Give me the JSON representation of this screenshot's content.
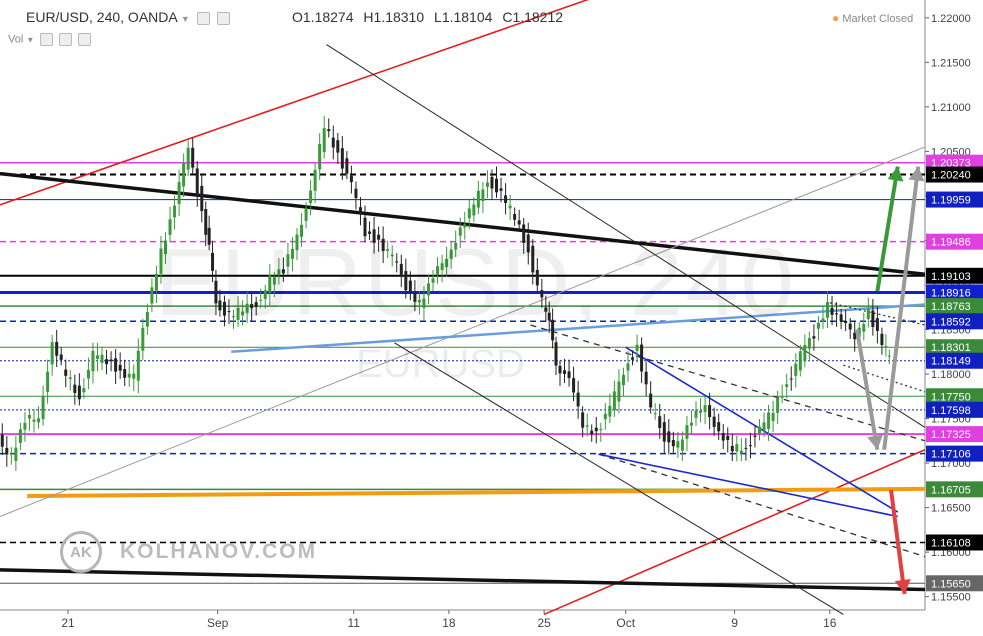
{
  "header": {
    "symbol": "EUR/USD, 240, OANDA",
    "ohlc": [
      {
        "label": "O",
        "value": "1.18274"
      },
      {
        "label": "H",
        "value": "1.18310"
      },
      {
        "label": "L",
        "value": "1.18104"
      },
      {
        "label": "C",
        "value": "1.18212"
      }
    ],
    "volume_label": "Vol",
    "market_status": "Market Closed"
  },
  "watermark": {
    "big": "EURUSD, 240",
    "small": "EURUSD"
  },
  "brand": {
    "logo": "AK",
    "name": "KOLHANOV.COM"
  },
  "chart_data": {
    "type": "candlestick",
    "ylim": [
      1.1535,
      1.222
    ],
    "x_ticks": [
      {
        "label": "21",
        "day": 21
      },
      {
        "label": "Sep",
        "day": 32
      },
      {
        "label": "11",
        "day": 42
      },
      {
        "label": "18",
        "day": 49
      },
      {
        "label": "25",
        "day": 56
      },
      {
        "label": "Oct",
        "day": 62
      },
      {
        "label": "9",
        "day": 70
      },
      {
        "label": "16",
        "day": 77
      }
    ],
    "y_ticks": [
      "1.22000",
      "1.21500",
      "1.21000",
      "1.20500",
      "1.20000",
      "1.19500",
      "1.19000",
      "1.18500",
      "1.18000",
      "1.17500",
      "1.17000",
      "1.16500",
      "1.16000",
      "1.15500"
    ],
    "levels": [
      {
        "label": "1.20373",
        "value": 1.20373,
        "color": "#e040e0",
        "bg": "#e040e0",
        "fg": "#ffffff",
        "style": "solid",
        "width": 1.5
      },
      {
        "label": "1.20240",
        "value": 1.2024,
        "color": "#000000",
        "bg": "#000000",
        "fg": "#ffffff",
        "style": "dashed",
        "width": 2
      },
      {
        "label": "1.19959",
        "value": 1.19959,
        "color": "#1020c0",
        "bg": "#1020c0",
        "fg": "#ffffff",
        "style": "solid",
        "width": 1
      },
      {
        "label": "1.19486",
        "value": 1.19486,
        "color": "#e040e0",
        "bg": "#e040e0",
        "fg": "#ffffff",
        "style": "dashed",
        "width": 1.5
      },
      {
        "label": "1.19103",
        "value": 1.19103,
        "color": "#000000",
        "bg": "#000000",
        "fg": "#ffffff",
        "style": "solid",
        "width": 2
      },
      {
        "label": "1.18916",
        "value": 1.18916,
        "color": "#1020d0",
        "bg": "#1020d0",
        "fg": "#ffffff",
        "style": "solid",
        "width": 3
      },
      {
        "label": "1.18763",
        "value": 1.18763,
        "color": "#3a8a3a",
        "bg": "#3a8a3a",
        "fg": "#ffffff",
        "style": "solid",
        "width": 1.5
      },
      {
        "label": "1.18592",
        "value": 1.18592,
        "color": "#1020c0",
        "bg": "#1020c0",
        "fg": "#ffffff",
        "style": "dashed",
        "width": 1.5
      },
      {
        "label": "1.18301",
        "value": 1.18301,
        "color": "#3a8a3a",
        "bg": "#3a8a3a",
        "fg": "#ffffff",
        "style": "solid",
        "width": 1
      },
      {
        "label": "1.18149",
        "value": 1.18149,
        "color": "#1020c0",
        "bg": "#1020c0",
        "fg": "#ffffff",
        "style": "dotted",
        "width": 1
      },
      {
        "label": "1.17750",
        "value": 1.1775,
        "color": "#3a8a3a",
        "bg": "#3a8a3a",
        "fg": "#ffffff",
        "style": "solid",
        "width": 1
      },
      {
        "label": "1.17598",
        "value": 1.17598,
        "color": "#1020c0",
        "bg": "#1020c0",
        "fg": "#ffffff",
        "style": "dotted",
        "width": 1
      },
      {
        "label": "1.17325",
        "value": 1.17325,
        "color": "#e040e0",
        "bg": "#e040e0",
        "fg": "#ffffff",
        "style": "solid",
        "width": 2
      },
      {
        "label": "1.17106",
        "value": 1.17106,
        "color": "#1020c0",
        "bg": "#1020c0",
        "fg": "#ffffff",
        "style": "dashed",
        "width": 1.5
      },
      {
        "label": "1.16705",
        "value": 1.16705,
        "color": "#3a8a3a",
        "bg": "#3a8a3a",
        "fg": "#ffffff",
        "style": "solid",
        "width": 1.5
      },
      {
        "label": "1.16108",
        "value": 1.16108,
        "color": "#000000",
        "bg": "#000000",
        "fg": "#ffffff",
        "style": "dashed",
        "width": 1.5
      },
      {
        "label": "1.15650",
        "value": 1.1565,
        "color": "#555555",
        "bg": "#666666",
        "fg": "#ffffff",
        "style": "solid",
        "width": 1
      }
    ],
    "last_price": 1.18212,
    "price_path": [
      [
        16,
        1.173
      ],
      [
        17,
        1.1706
      ],
      [
        18,
        1.1745
      ],
      [
        19,
        1.1755
      ],
      [
        20,
        1.183
      ],
      [
        21,
        1.18
      ],
      [
        22,
        1.1775
      ],
      [
        23,
        1.182
      ],
      [
        24,
        1.1815
      ],
      [
        25,
        1.1805
      ],
      [
        26,
        1.1795
      ],
      [
        27,
        1.1875
      ],
      [
        28,
        1.194
      ],
      [
        29,
        1.1985
      ],
      [
        30,
        1.206
      ],
      [
        31,
        1.198
      ],
      [
        31.5,
        1.194
      ],
      [
        32,
        1.188
      ],
      [
        33,
        1.1865
      ],
      [
        34,
        1.187
      ],
      [
        35,
        1.188
      ],
      [
        36,
        1.1905
      ],
      [
        37,
        1.1915
      ],
      [
        38,
        1.196
      ],
      [
        39,
        1.2
      ],
      [
        40,
        1.208
      ],
      [
        41,
        1.205
      ],
      [
        42,
        1.201
      ],
      [
        43,
        1.196
      ],
      [
        44,
        1.195
      ],
      [
        45,
        1.193
      ],
      [
        46,
        1.19
      ],
      [
        47,
        1.188
      ],
      [
        48,
        1.1905
      ],
      [
        49,
        1.1935
      ],
      [
        50,
        1.196
      ],
      [
        51,
        1.199
      ],
      [
        52,
        1.202
      ],
      [
        53,
        1.2
      ],
      [
        54,
        1.1975
      ],
      [
        55,
        1.194
      ],
      [
        56,
        1.188
      ],
      [
        56.5,
        1.1855
      ],
      [
        57,
        1.1815
      ],
      [
        58,
        1.179
      ],
      [
        59,
        1.1745
      ],
      [
        60,
        1.1735
      ],
      [
        61,
        1.176
      ],
      [
        62,
        1.1805
      ],
      [
        63,
        1.183
      ],
      [
        64,
        1.176
      ],
      [
        65,
        1.173
      ],
      [
        66,
        1.172
      ],
      [
        67,
        1.1745
      ],
      [
        68,
        1.177
      ],
      [
        69,
        1.173
      ],
      [
        70,
        1.1715
      ],
      [
        71,
        1.172
      ],
      [
        72,
        1.1735
      ],
      [
        73,
        1.176
      ],
      [
        74,
        1.179
      ],
      [
        75,
        1.182
      ],
      [
        76,
        1.1845
      ],
      [
        77,
        1.188
      ],
      [
        78,
        1.1855
      ],
      [
        79,
        1.1845
      ],
      [
        80,
        1.187
      ],
      [
        81,
        1.183
      ],
      [
        81.5,
        1.1821
      ]
    ],
    "trendlines": [
      {
        "id": "red-channel-top",
        "color": "#e02020",
        "width": 1.6,
        "dash": "",
        "p1": [
          16,
          1.199
        ],
        "p2": [
          61,
          1.223
        ]
      },
      {
        "id": "red-channel-bottom",
        "color": "#e02020",
        "width": 1.6,
        "dash": "",
        "p1": [
          56,
          1.153
        ],
        "p2": [
          84,
          1.1715
        ]
      },
      {
        "id": "black-thick-resistance",
        "color": "#111111",
        "width": 3.5,
        "dash": "",
        "p1": [
          16,
          1.2025
        ],
        "p2": [
          84,
          1.1912
        ]
      },
      {
        "id": "black-thick-bottom",
        "color": "#111111",
        "width": 3.5,
        "dash": "",
        "p1": [
          16,
          1.158
        ],
        "p2": [
          84,
          1.1558
        ]
      },
      {
        "id": "orange-support",
        "color": "#f39c12",
        "width": 4,
        "dash": "",
        "p1": [
          18,
          1.1663
        ],
        "p2": [
          84,
          1.1671
        ]
      },
      {
        "id": "light-blue-support",
        "color": "#6a9de0",
        "width": 2.5,
        "dash": "",
        "p1": [
          33,
          1.1825
        ],
        "p2": [
          84,
          1.1878
        ]
      },
      {
        "id": "grey-channel-line",
        "color": "#999999",
        "width": 1,
        "dash": "",
        "p1": [
          16,
          1.164
        ],
        "p2": [
          84,
          1.2055
        ]
      },
      {
        "id": "black-thin-upper",
        "color": "#222222",
        "width": 1,
        "dash": "",
        "p1": [
          40,
          1.217
        ],
        "p2": [
          84,
          1.174
        ]
      },
      {
        "id": "black-thin-lower",
        "color": "#222222",
        "width": 1,
        "dash": "",
        "p1": [
          45,
          1.1835
        ],
        "p2": [
          78,
          1.153
        ]
      },
      {
        "id": "black-dashed-mid1",
        "color": "#333333",
        "width": 1.3,
        "dash": "6,5",
        "p1": [
          55,
          1.1855
        ],
        "p2": [
          84,
          1.1725
        ]
      },
      {
        "id": "black-dashed-mid2",
        "color": "#333333",
        "width": 1.3,
        "dash": "6,5",
        "p1": [
          60,
          1.171
        ],
        "p2": [
          84,
          1.1595
        ]
      },
      {
        "id": "dotted-upper",
        "color": "#333333",
        "width": 1.3,
        "dash": "2,3",
        "p1": [
          77,
          1.188
        ],
        "p2": [
          84,
          1.1855
        ]
      },
      {
        "id": "dotted-lower",
        "color": "#333333",
        "width": 1.3,
        "dash": "2,3",
        "p1": [
          78,
          1.181
        ],
        "p2": [
          84,
          1.178
        ]
      },
      {
        "id": "blue-wedge-top",
        "color": "#1a2ad0",
        "width": 1.6,
        "dash": "",
        "p1": [
          62,
          1.183
        ],
        "p2": [
          82,
          1.1645
        ]
      },
      {
        "id": "blue-wedge-bottom",
        "color": "#1a2ad0",
        "width": 1.6,
        "dash": "",
        "p1": [
          60,
          1.171
        ],
        "p2": [
          82,
          1.164
        ]
      }
    ],
    "arrows": [
      {
        "id": "green-up-arrow",
        "color": "#3a9a3a",
        "p1": [
          80.5,
          1.1893
        ],
        "p2": [
          82,
          1.2033
        ]
      },
      {
        "id": "grey-up-arrow",
        "color": "#9a9a9a",
        "p1": [
          81,
          1.1715
        ],
        "p2": [
          83.5,
          1.2033
        ]
      },
      {
        "id": "grey-down-arrow",
        "color": "#9a9a9a",
        "p1": [
          79,
          1.185
        ],
        "p2": [
          80.5,
          1.1715
        ]
      },
      {
        "id": "red-down-arrow",
        "color": "#e04040",
        "p1": [
          81.5,
          1.167
        ],
        "p2": [
          82.5,
          1.1553
        ]
      }
    ]
  }
}
